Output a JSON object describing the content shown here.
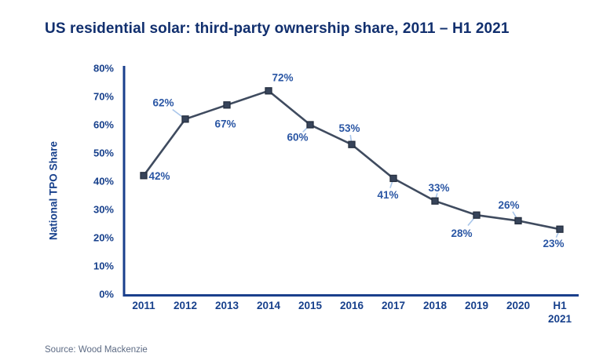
{
  "header": {
    "title": "US residential solar: third-party ownership share, 2011 – H1 2021"
  },
  "source": {
    "label": "Source: Wood Mackenzie"
  },
  "chart_data": {
    "type": "line",
    "title": "US residential solar: third-party ownership share, 2011 – H1 2021",
    "xlabel": "",
    "ylabel": "National TPO Share",
    "categories": [
      "2011",
      "2012",
      "2013",
      "2014",
      "2015",
      "2016",
      "2017",
      "2018",
      "2019",
      "2020",
      "H1 2021"
    ],
    "values": [
      42,
      62,
      67,
      72,
      60,
      53,
      41,
      33,
      28,
      26,
      23
    ],
    "point_labels": [
      "42%",
      "62%",
      "67%",
      "72%",
      "60%",
      "53%",
      "41%",
      "33%",
      "28%",
      "26%",
      "23%"
    ],
    "ylim": [
      0,
      80
    ],
    "ytick_step": 10,
    "ytick_labels": [
      "0%",
      "10%",
      "20%",
      "30%",
      "40%",
      "50%",
      "60%",
      "70%",
      "80%"
    ],
    "grid": false,
    "legend": "none",
    "marker": "square",
    "colors": {
      "title": "#112f6e",
      "axis": "#1a3f8c",
      "tick_label": "#17408c",
      "data_label": "#2a56a4",
      "line": "#3f4b5f",
      "marker_fill": "#37445a",
      "marker_border": "#252f40",
      "leader_line": "#a9c6ea",
      "source": "#5d6b84",
      "background": "#ffffff"
    }
  }
}
